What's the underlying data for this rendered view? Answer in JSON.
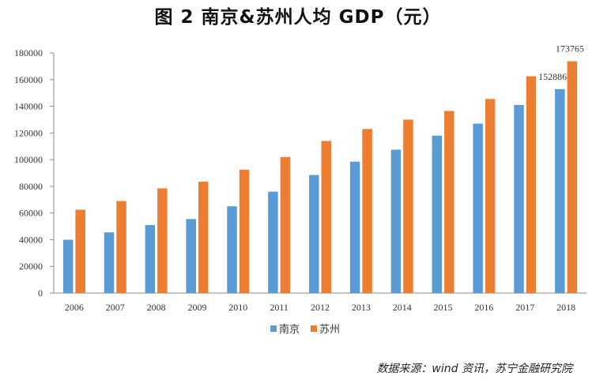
{
  "chart_data": {
    "type": "bar",
    "title": "图 2   南京&苏州人均 GDP（元）",
    "categories": [
      "2006",
      "2007",
      "2008",
      "2009",
      "2010",
      "2011",
      "2012",
      "2013",
      "2014",
      "2015",
      "2016",
      "2017",
      "2018"
    ],
    "series": [
      {
        "name": "南京",
        "color": "#5B9BD5",
        "values": [
          40000,
          45500,
          51000,
          55500,
          65000,
          76000,
          88500,
          98500,
          107500,
          118000,
          127000,
          141000,
          152886
        ]
      },
      {
        "name": "苏州",
        "color": "#ED7D31",
        "values": [
          62500,
          69000,
          78500,
          83500,
          92500,
          102000,
          114000,
          123000,
          130000,
          136500,
          145500,
          162500,
          173765
        ]
      }
    ],
    "data_labels": [
      {
        "series": "南京",
        "category": "2018",
        "text": "152886"
      },
      {
        "series": "苏州",
        "category": "2018",
        "text": "173765"
      }
    ],
    "ylim": [
      0,
      180000
    ],
    "yticks": [
      0,
      20000,
      40000,
      60000,
      80000,
      100000,
      120000,
      140000,
      160000,
      180000
    ],
    "xlabel": "",
    "ylabel": "",
    "grid": false,
    "legend": "bottom"
  },
  "source_note": "数据来源：wind 资讯，苏宁金融研究院"
}
